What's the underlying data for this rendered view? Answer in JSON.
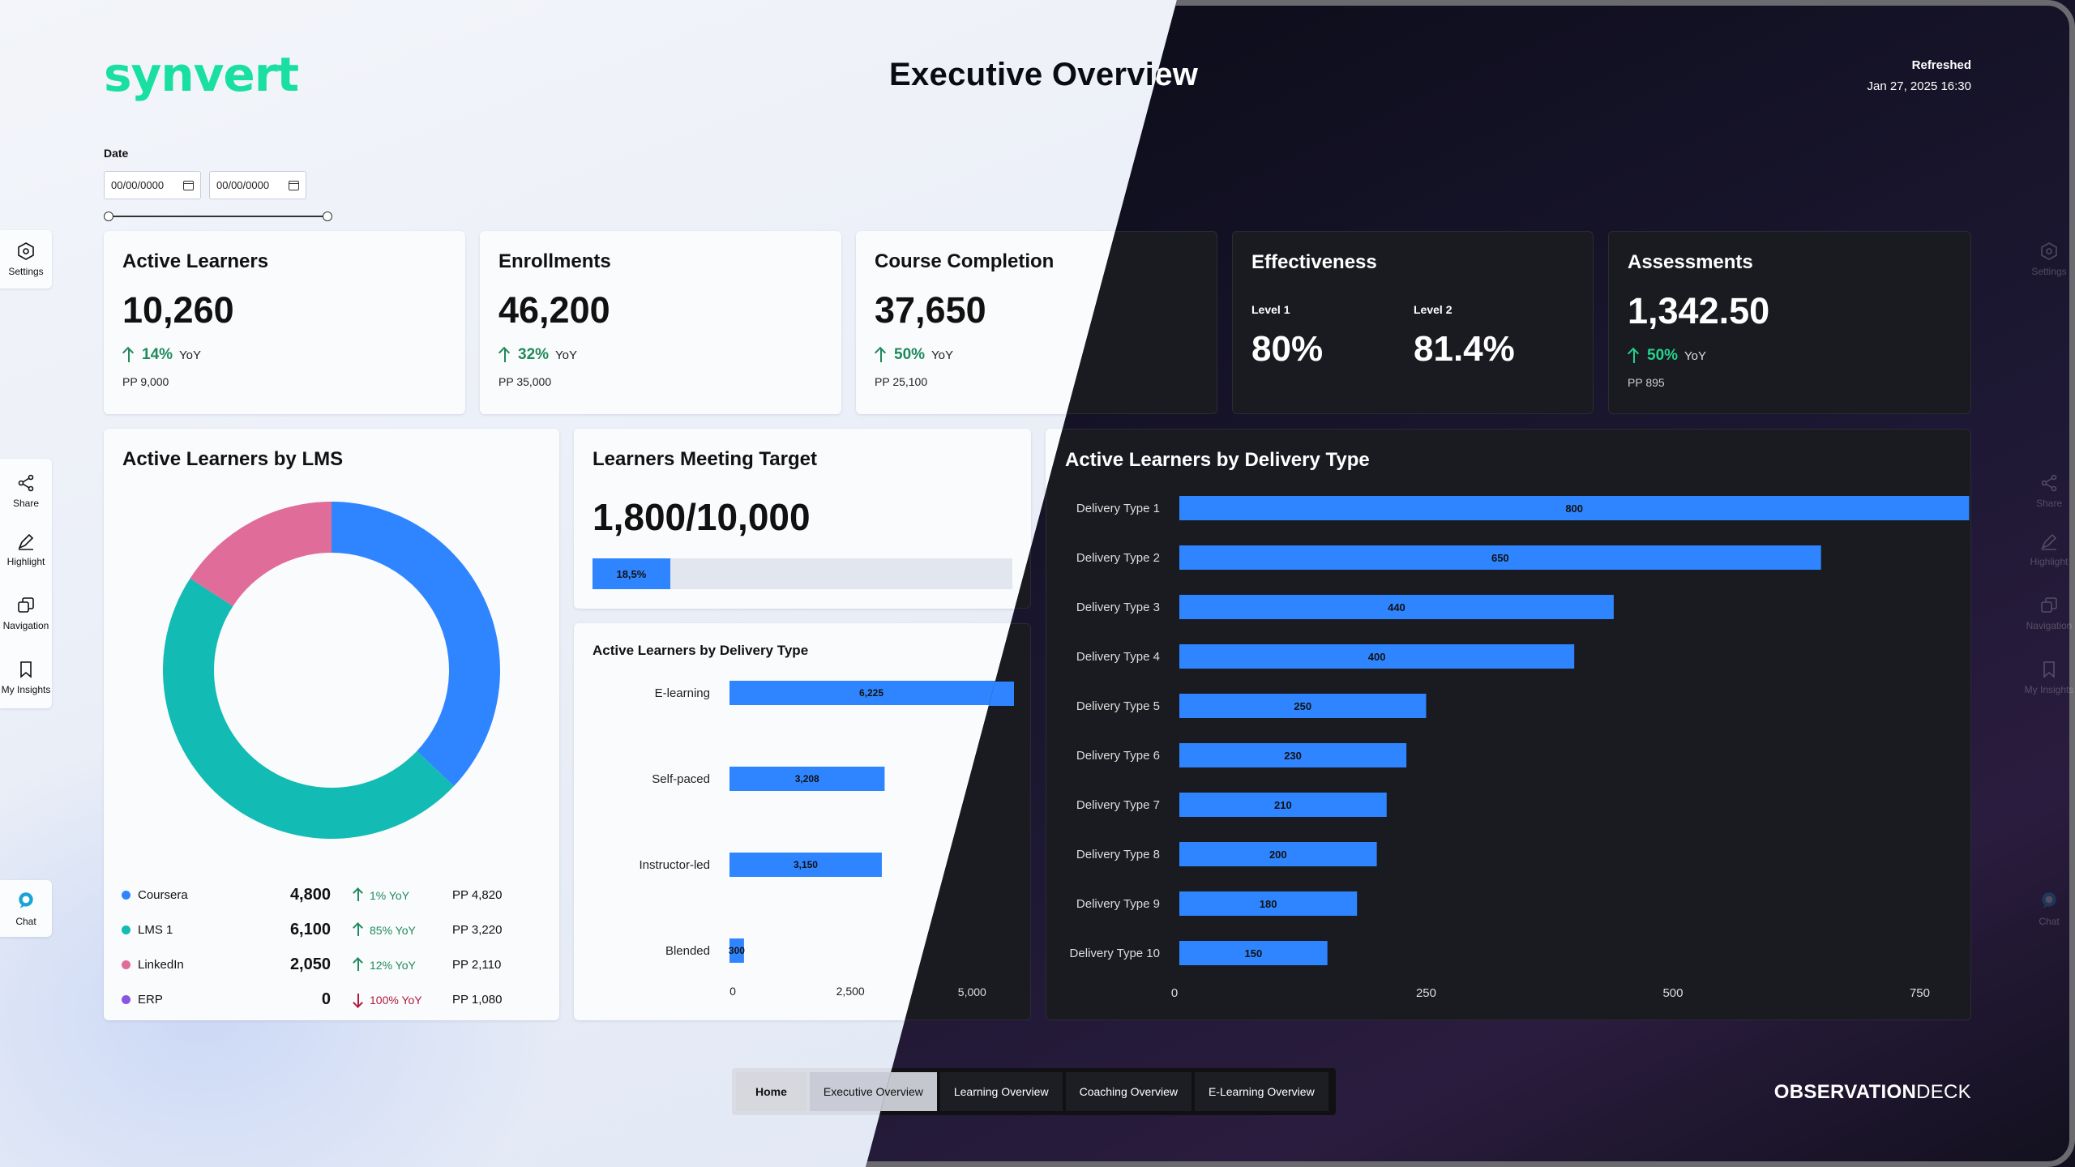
{
  "header": {
    "logo": "synvert",
    "title": "Executive Overview",
    "refreshed_label": "Refreshed",
    "refreshed_time": "Jan 27, 2025 16:30"
  },
  "date_filter": {
    "label": "Date",
    "start_value": "00/00/0000",
    "end_value": "00/00/0000"
  },
  "kpis": {
    "active_learners": {
      "title": "Active Learners",
      "value": "10,260",
      "change": "14%",
      "yoy": "YoY",
      "pp": "PP  9,000"
    },
    "enrollments": {
      "title": "Enrollments",
      "value": "46,200",
      "change": "32%",
      "yoy": "YoY",
      "pp": "PP  35,000"
    },
    "course_completion": {
      "title": "Course Completion",
      "value": "37,650",
      "change": "50%",
      "yoy": "YoY",
      "pp": "PP  25,100"
    },
    "effectiveness": {
      "title": "Effectiveness",
      "level1_label": "Level 1",
      "level1_value": "80%",
      "level2_label": "Level 2",
      "level2_value": "81.4%"
    },
    "assessments": {
      "title": "Assessments",
      "value": "1,342.50",
      "change": "50%",
      "yoy": "YoY",
      "pp": "PP  895"
    }
  },
  "lms": {
    "title": "Active Learners by LMS",
    "items": [
      {
        "name": "Coursera",
        "value": "4,800",
        "change": "1% YoY",
        "direction": "up",
        "pp": "PP 4,820",
        "color": "#2f85ff"
      },
      {
        "name": "LMS 1",
        "value": "6,100",
        "change": "85% YoY",
        "direction": "up",
        "pp": "PP 3,220",
        "color": "#12bbb4"
      },
      {
        "name": "LinkedIn",
        "value": "2,050",
        "change": "12% YoY",
        "direction": "up",
        "pp": "PP 2,110",
        "color": "#e06c9a"
      },
      {
        "name": "ERP",
        "value": "0",
        "change": "100% YoY",
        "direction": "down",
        "pp": "PP 1,080",
        "color": "#8a55e0"
      }
    ]
  },
  "target": {
    "title": "Learners Meeting Target",
    "value": "1,800/10,000",
    "progress_label": "18,5%",
    "progress_fraction": 0.185
  },
  "chart_data": [
    {
      "type": "pie",
      "title": "Active Learners by LMS",
      "categories": [
        "Coursera",
        "LMS 1",
        "LinkedIn",
        "ERP"
      ],
      "values": [
        4800,
        6100,
        2050,
        0
      ],
      "colors": [
        "#2f85ff",
        "#12bbb4",
        "#e06c9a",
        "#8a55e0"
      ],
      "donut": true
    },
    {
      "type": "bar",
      "orientation": "horizontal",
      "title": "Active Learners by Delivery Type",
      "categories": [
        "E-learning",
        "Self-paced",
        "Instructor-led",
        "Blended"
      ],
      "values": [
        6225,
        3208,
        3150,
        300
      ],
      "labels": [
        "6,225",
        "3,208",
        "3,150",
        "300"
      ],
      "xlim": [
        0,
        6000
      ],
      "ticks": [
        0,
        2500,
        5000
      ],
      "tick_labels": [
        "0",
        "2,500",
        "5,000"
      ],
      "color": "#2f85ff"
    },
    {
      "type": "bar",
      "orientation": "horizontal",
      "title": "Active Learners by Delivery Type",
      "categories": [
        "Delivery Type 1",
        "Delivery Type 2",
        "Delivery Type 3",
        "Delivery Type 4",
        "Delivery Type 5",
        "Delivery Type 6",
        "Delivery Type 7",
        "Delivery Type 8",
        "Delivery Type 9",
        "Delivery Type 10"
      ],
      "values": [
        800,
        650,
        440,
        400,
        250,
        230,
        210,
        200,
        180,
        150
      ],
      "xlim": [
        0,
        780
      ],
      "ticks": [
        0,
        250,
        500,
        750
      ],
      "tick_labels": [
        "0",
        "250",
        "500",
        "750"
      ],
      "color": "#2f85ff"
    }
  ],
  "sidebar": {
    "settings": "Settings",
    "share": "Share",
    "highlight": "Highlight",
    "navigation": "Navigation",
    "insights": "My Insights",
    "chat": "Chat"
  },
  "tabs": [
    "Home",
    "Executive Overview",
    "Learning Overview",
    "Coaching Overview",
    "E-Learning Overview"
  ],
  "brand": {
    "bold": "OBSERVATION",
    "light": "DECK"
  }
}
